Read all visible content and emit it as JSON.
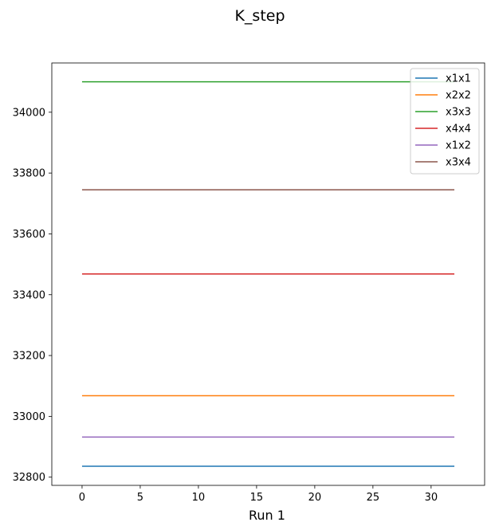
{
  "chart_data": {
    "type": "line",
    "title": "K_step",
    "xlabel": "Run 1",
    "ylabel": "",
    "xlim": [
      -2.6,
      34.6
    ],
    "ylim": [
      32773,
      34162
    ],
    "xticks": [
      0,
      5,
      10,
      15,
      20,
      25,
      30
    ],
    "yticks": [
      32800,
      33000,
      33200,
      33400,
      33600,
      33800,
      34000
    ],
    "grid": false,
    "legend_position": "top-right",
    "x": [
      0,
      32
    ],
    "series": [
      {
        "name": "x1x1",
        "color": "#1f77b4",
        "values": [
          32836,
          32836
        ]
      },
      {
        "name": "x2x2",
        "color": "#ff7f0e",
        "values": [
          33068,
          33068
        ]
      },
      {
        "name": "x3x3",
        "color": "#2ca02c",
        "values": [
          34100,
          34100
        ]
      },
      {
        "name": "x4x4",
        "color": "#d62728",
        "values": [
          33468,
          33468
        ]
      },
      {
        "name": "x1x2",
        "color": "#9467bd",
        "values": [
          32932,
          32932
        ]
      },
      {
        "name": "x3x4",
        "color": "#8c564b",
        "values": [
          33745,
          33745
        ]
      }
    ]
  }
}
